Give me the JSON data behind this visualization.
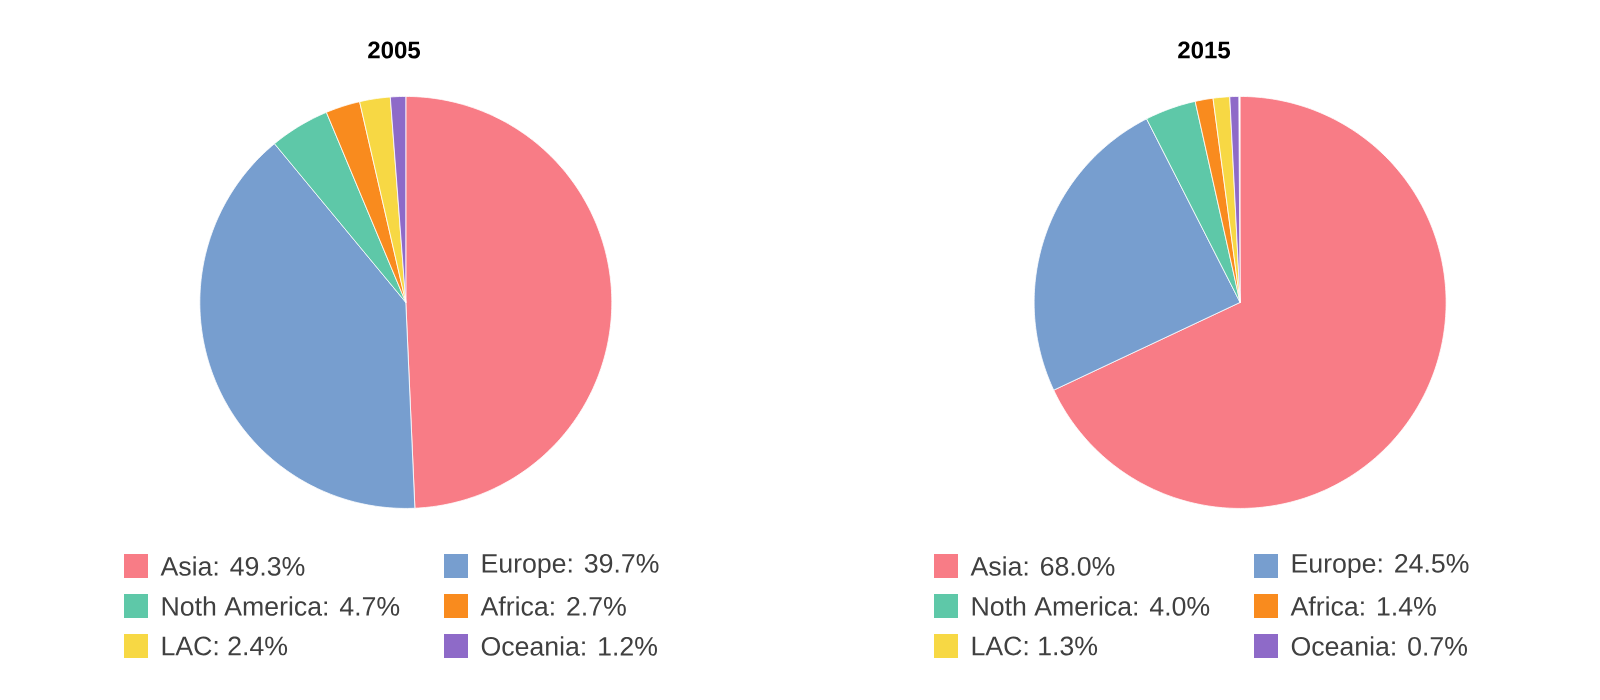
{
  "chart_data": [
    {
      "type": "pie",
      "title": "2005",
      "categories": [
        "Asia: 49.3%",
        "Europe: 39.7%",
        "Noth America: 4.7%",
        "Africa: 2.7%",
        "LAC: 2.4%",
        "Oceania: 1.2%"
      ],
      "values": [
        49.3,
        39.7,
        4.7,
        2.7,
        2.4,
        1.2
      ],
      "colors": [
        "#f87c86",
        "#779ecf",
        "#5ec8a8",
        "#f98b1e",
        "#f7d844",
        "#8e6ac8"
      ],
      "legend": "bottom"
    },
    {
      "type": "pie",
      "title": "2015",
      "categories": [
        "Asia: 68.0%",
        "Europe: 24.5%",
        "Noth America: 4.0%",
        "Africa: 1.4%",
        "LAC: 1.3%",
        "Oceania: 0.7%"
      ],
      "values": [
        68.0,
        24.5,
        4.0,
        1.4,
        1.3,
        0.7
      ],
      "colors": [
        "#f87c86",
        "#779ecf",
        "#5ec8a8",
        "#f98b1e",
        "#f7d844",
        "#8e6ac8"
      ],
      "legend": "bottom"
    }
  ]
}
